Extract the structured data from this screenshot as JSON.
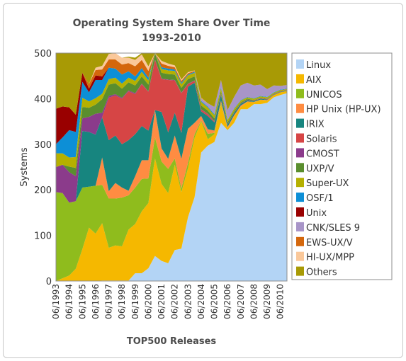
{
  "chart_data": {
    "type": "area",
    "stacked": true,
    "title": "Operating System Share Over Time",
    "subtitle": "1993-2010",
    "xlabel": "TOP500 Releases",
    "ylabel": "Systems",
    "ylim": [
      0,
      500
    ],
    "yticks": [
      "0",
      "100",
      "200",
      "300",
      "400",
      "500"
    ],
    "grid": false,
    "legend_position": "right",
    "x": [
      "06/1993",
      "11/1993",
      "06/1994",
      "11/1994",
      "06/1995",
      "11/1995",
      "06/1996",
      "11/1996",
      "06/1997",
      "11/1997",
      "06/1998",
      "11/1998",
      "06/1999",
      "11/1999",
      "06/2000",
      "11/2000",
      "06/2001",
      "11/2001",
      "06/2002",
      "11/2002",
      "06/2003",
      "11/2003",
      "06/2004",
      "11/2004",
      "06/2005",
      "11/2005",
      "06/2006",
      "11/2006",
      "06/2007",
      "11/2007",
      "06/2008",
      "11/2008",
      "06/2009",
      "11/2009",
      "06/2010",
      "11/2010"
    ],
    "x_tick_labels": [
      "06/1993",
      "06/1994",
      "06/1995",
      "06/1996",
      "06/1997",
      "06/1998",
      "06/1999",
      "06/2000",
      "06/2001",
      "06/2002",
      "06/2003",
      "06/2004",
      "06/2005",
      "06/2006",
      "06/2007",
      "06/2008",
      "06/2009",
      "06/2010"
    ],
    "series": [
      {
        "name": "Linux",
        "color": "#b3d4f5",
        "values": [
          0,
          0,
          0,
          0,
          0,
          0,
          0,
          1,
          1,
          1,
          1,
          1,
          17,
          17,
          28,
          55,
          44,
          39,
          68,
          71,
          140,
          184,
          282,
          297,
          305,
          347,
          331,
          347,
          377,
          377,
          388,
          388,
          391,
          403,
          408,
          412
        ]
      },
      {
        "name": "AIX",
        "color": "#f5b800",
        "values": [
          0,
          6,
          12,
          27,
          70,
          117,
          104,
          126,
          72,
          77,
          75,
          112,
          108,
          136,
          143,
          214,
          169,
          154,
          187,
          124,
          107,
          130,
          68,
          14,
          17,
          40,
          4,
          14,
          5,
          15,
          4,
          9,
          5,
          5,
          6,
          5
        ]
      },
      {
        "name": "UNICOS",
        "color": "#8fbc1d",
        "values": [
          195,
          187,
          160,
          148,
          135,
          90,
          105,
          84,
          108,
          103,
          107,
          75,
          80,
          71,
          54,
          46,
          49,
          53,
          14,
          8,
          12,
          8,
          2,
          12,
          3,
          4,
          0,
          0,
          0,
          0,
          0,
          0,
          0,
          0,
          0,
          0
        ]
      },
      {
        "name": "HP Unix (HP-UX)",
        "color": "#ff8c42",
        "values": [
          0,
          0,
          0,
          0,
          0,
          0,
          0,
          60,
          16,
          34,
          22,
          10,
          25,
          41,
          40,
          60,
          29,
          22,
          50,
          65,
          75,
          25,
          10,
          10,
          5,
          5,
          3,
          3,
          3,
          2,
          1,
          1,
          1,
          0,
          0,
          0
        ]
      },
      {
        "name": "IRIX",
        "color": "#17857f",
        "values": [
          0,
          0,
          0,
          0,
          124,
          120,
          112,
          88,
          112,
          104,
          95,
          111,
          92,
          75,
          65,
          0,
          80,
          58,
          50,
          57,
          92,
          88,
          10,
          29,
          18,
          12,
          5,
          5,
          4,
          3,
          2,
          2,
          1,
          1,
          1,
          1
        ]
      },
      {
        "name": "Solaris",
        "color": "#d64545",
        "values": [
          0,
          0,
          0,
          0,
          0,
          0,
          0,
          0,
          93,
          88,
          100,
          107,
          88,
          92,
          85,
          110,
          72,
          115,
          71,
          87,
          6,
          4,
          4,
          4,
          2,
          2,
          1,
          1,
          1,
          1,
          1,
          1,
          1,
          1,
          1,
          1
        ]
      },
      {
        "name": "CMOST",
        "color": "#8b3b8b",
        "values": [
          55,
          62,
          67,
          55,
          28,
          33,
          46,
          10,
          4,
          3,
          2,
          2,
          2,
          1,
          1,
          1,
          1,
          1,
          1,
          1,
          1,
          1,
          1,
          1,
          1,
          1,
          0,
          0,
          0,
          0,
          0,
          0,
          0,
          0,
          0,
          0
        ]
      },
      {
        "name": "UXP/V",
        "color": "#5a8e2e",
        "values": [
          0,
          0,
          12,
          18,
          25,
          20,
          20,
          30,
          25,
          24,
          20,
          18,
          17,
          16,
          15,
          14,
          13,
          12,
          12,
          11,
          10,
          9,
          8,
          7,
          6,
          5,
          4,
          3,
          2,
          2,
          1,
          1,
          1,
          1,
          1,
          0
        ]
      },
      {
        "name": "Super-UX",
        "color": "#b5b000",
        "values": [
          30,
          25,
          20,
          24,
          20,
          14,
          14,
          12,
          12,
          12,
          11,
          10,
          10,
          10,
          9,
          9,
          8,
          8,
          8,
          8,
          8,
          8,
          8,
          7,
          7,
          7,
          5,
          5,
          4,
          3,
          3,
          3,
          3,
          2,
          2,
          2
        ]
      },
      {
        "name": "OSF/1",
        "color": "#0d8fd6",
        "values": [
          20,
          35,
          60,
          55,
          35,
          20,
          40,
          30,
          25,
          20,
          20,
          14,
          10,
          8,
          6,
          5,
          4,
          4,
          3,
          3,
          2,
          2,
          2,
          2,
          2,
          2,
          1,
          1,
          1,
          1,
          1,
          1,
          1,
          1,
          1,
          1
        ]
      },
      {
        "name": "Unix",
        "color": "#990000",
        "values": [
          78,
          68,
          50,
          38,
          20,
          8,
          10,
          8,
          0,
          0,
          0,
          0,
          0,
          0,
          0,
          0,
          0,
          0,
          0,
          0,
          0,
          0,
          0,
          0,
          0,
          0,
          0,
          0,
          0,
          0,
          0,
          0,
          0,
          0,
          0,
          0
        ]
      },
      {
        "name": "CNK/SLES 9",
        "color": "#a895c8",
        "values": [
          0,
          0,
          0,
          0,
          0,
          0,
          0,
          0,
          0,
          0,
          0,
          0,
          0,
          0,
          0,
          0,
          0,
          0,
          0,
          0,
          0,
          0,
          5,
          7,
          16,
          16,
          21,
          25,
          32,
          31,
          28,
          25,
          17,
          15,
          8,
          8
        ]
      },
      {
        "name": "EWS-UX/V",
        "color": "#d4670c",
        "values": [
          0,
          0,
          0,
          0,
          0,
          10,
          12,
          15,
          18,
          20,
          22,
          18,
          22,
          18,
          15,
          10,
          8,
          6,
          5,
          4,
          3,
          2,
          1,
          0,
          0,
          0,
          0,
          0,
          0,
          0,
          0,
          0,
          0,
          0,
          0,
          0
        ]
      },
      {
        "name": "HI-UX/MPP",
        "color": "#fac89a",
        "values": [
          0,
          0,
          0,
          0,
          0,
          0,
          5,
          8,
          12,
          14,
          15,
          12,
          14,
          12,
          10,
          8,
          6,
          5,
          4,
          3,
          2,
          1,
          1,
          0,
          0,
          0,
          0,
          0,
          0,
          0,
          0,
          0,
          0,
          0,
          0,
          0
        ]
      },
      {
        "name": "Others",
        "color": "#a89a05",
        "values": [
          122,
          117,
          119,
          135,
          43,
          68,
          32,
          28,
          2,
          0,
          0,
          2,
          5,
          3,
          29,
          18,
          67,
          23,
          27,
          58,
          42,
          38,
          98,
          110,
          118,
          60,
          125,
          96,
          71,
          65,
          71,
          69,
          79,
          71,
          72,
          70
        ]
      }
    ]
  }
}
